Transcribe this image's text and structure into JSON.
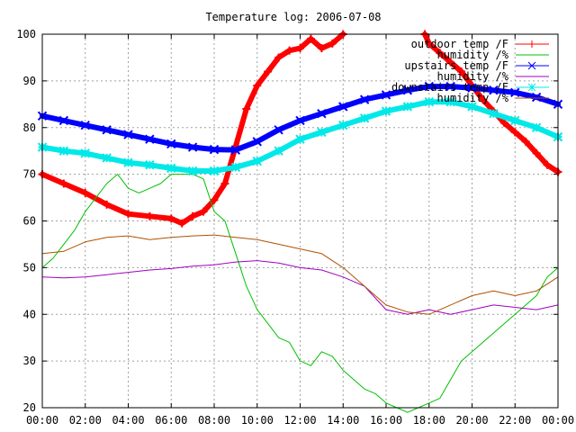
{
  "chart_data": {
    "type": "line",
    "title": "Temperature log: 2006-07-08",
    "xlabel": "",
    "ylabel": "",
    "xlim": [
      0,
      24
    ],
    "ylim": [
      20,
      100
    ],
    "grid": true,
    "legend_position": "top-right",
    "x_tick_labels": [
      "00:00",
      "02:00",
      "04:00",
      "06:00",
      "08:00",
      "10:00",
      "12:00",
      "14:00",
      "16:00",
      "18:00",
      "20:00",
      "22:00",
      "00:00"
    ],
    "y_ticks": [
      20,
      30,
      40,
      50,
      60,
      70,
      80,
      90,
      100
    ],
    "series": [
      {
        "name": "outdoor temp /F",
        "color": "#ff0000",
        "marker": "plus",
        "x": [
          0,
          1,
          2,
          3,
          4,
          5,
          6,
          6.5,
          7,
          7.5,
          8,
          8.5,
          9,
          9.5,
          10,
          10.5,
          11,
          11.5,
          12,
          12.5,
          13,
          13.5,
          14,
          17.8,
          18,
          18.5,
          19,
          19.5,
          20,
          20.5,
          21,
          21.5,
          22,
          22.5,
          23,
          23.5,
          24
        ],
        "y": [
          70,
          68,
          66,
          63.5,
          61.5,
          61,
          60.5,
          59.5,
          61,
          62,
          64.5,
          68,
          76,
          84,
          89,
          92,
          95,
          96.5,
          97,
          99,
          97,
          98,
          100,
          100,
          98,
          96,
          94,
          92,
          89,
          86,
          83.5,
          81,
          79,
          77,
          74.5,
          72,
          70.5
        ]
      },
      {
        "name": "humidity /%",
        "color": "#00c000",
        "marker": "none",
        "x": [
          0,
          0.5,
          1,
          1.5,
          2,
          2.5,
          3,
          3.5,
          4,
          4.5,
          5,
          5.5,
          6,
          6.5,
          7,
          7.5,
          8,
          8.5,
          9,
          9.5,
          10,
          10.5,
          11,
          11.5,
          12,
          12.5,
          13,
          13.5,
          14,
          14.5,
          15,
          15.5,
          16,
          16.5,
          17,
          17.5,
          18,
          18.5,
          19,
          19.5,
          20,
          20.5,
          21,
          21.5,
          22,
          22.5,
          23,
          23.5,
          24
        ],
        "y": [
          50,
          52,
          55,
          58,
          62,
          65,
          68,
          70,
          67,
          66,
          67,
          68,
          70,
          70,
          70,
          69,
          62,
          60,
          53,
          46,
          41,
          38,
          35,
          34,
          30,
          29,
          32,
          31,
          28,
          26,
          24,
          23,
          21,
          20,
          19,
          20,
          21,
          22,
          26,
          30,
          32,
          34,
          36,
          38,
          40,
          42,
          44,
          48,
          50
        ]
      },
      {
        "name": "upstairs temp /F",
        "color": "#0000ff",
        "marker": "cross",
        "x": [
          0,
          1,
          2,
          3,
          4,
          5,
          6,
          7,
          8,
          9,
          10,
          11,
          12,
          13,
          14,
          15,
          16,
          17,
          18,
          19,
          20,
          21,
          22,
          23,
          24
        ],
        "y": [
          82.5,
          81.5,
          80.5,
          79.5,
          78.5,
          77.5,
          76.5,
          75.8,
          75.3,
          75.2,
          77,
          79.5,
          81.5,
          83,
          84.5,
          86,
          87,
          88,
          88.8,
          88.8,
          88.5,
          88,
          87.5,
          86.5,
          85
        ]
      },
      {
        "name": "humidity /%",
        "color": "#a000c0",
        "marker": "none",
        "x": [
          0,
          1,
          2,
          3,
          4,
          5,
          6,
          7,
          8,
          9,
          10,
          11,
          12,
          13,
          14,
          15,
          16,
          17,
          18,
          19,
          20,
          21,
          22,
          23,
          24
        ],
        "y": [
          48,
          47.8,
          48,
          48.5,
          49,
          49.5,
          49.8,
          50.3,
          50.6,
          51.2,
          51.5,
          51,
          50,
          49.5,
          48,
          46,
          41,
          40,
          41,
          40,
          41,
          42,
          41.5,
          41,
          42
        ]
      },
      {
        "name": "downstairs temp /F",
        "color": "#00e8e8",
        "marker": "star",
        "x": [
          0,
          1,
          2,
          3,
          4,
          5,
          6,
          7,
          8,
          9,
          10,
          11,
          12,
          13,
          14,
          15,
          16,
          17,
          18,
          19,
          20,
          21,
          22,
          23,
          24
        ],
        "y": [
          75.8,
          75,
          74.5,
          73.5,
          72.5,
          72,
          71.3,
          70.7,
          70.7,
          71.5,
          72.8,
          75,
          77.5,
          79,
          80.5,
          82,
          83.5,
          84.5,
          85.5,
          85.5,
          84.5,
          83,
          81.5,
          80,
          78
        ]
      },
      {
        "name": "humidity /%",
        "color": "#b05000",
        "marker": "none",
        "x": [
          0,
          1,
          2,
          3,
          4,
          5,
          6,
          7,
          8,
          9,
          10,
          11,
          12,
          13,
          14,
          15,
          16,
          17,
          18,
          19,
          20,
          21,
          22,
          23,
          24
        ],
        "y": [
          53,
          53.5,
          55.5,
          56.5,
          56.8,
          56,
          56.5,
          56.8,
          57,
          56.5,
          56,
          55,
          54,
          53,
          50,
          46,
          42,
          40.5,
          40,
          42,
          44,
          45,
          44,
          45,
          48
        ]
      }
    ]
  }
}
